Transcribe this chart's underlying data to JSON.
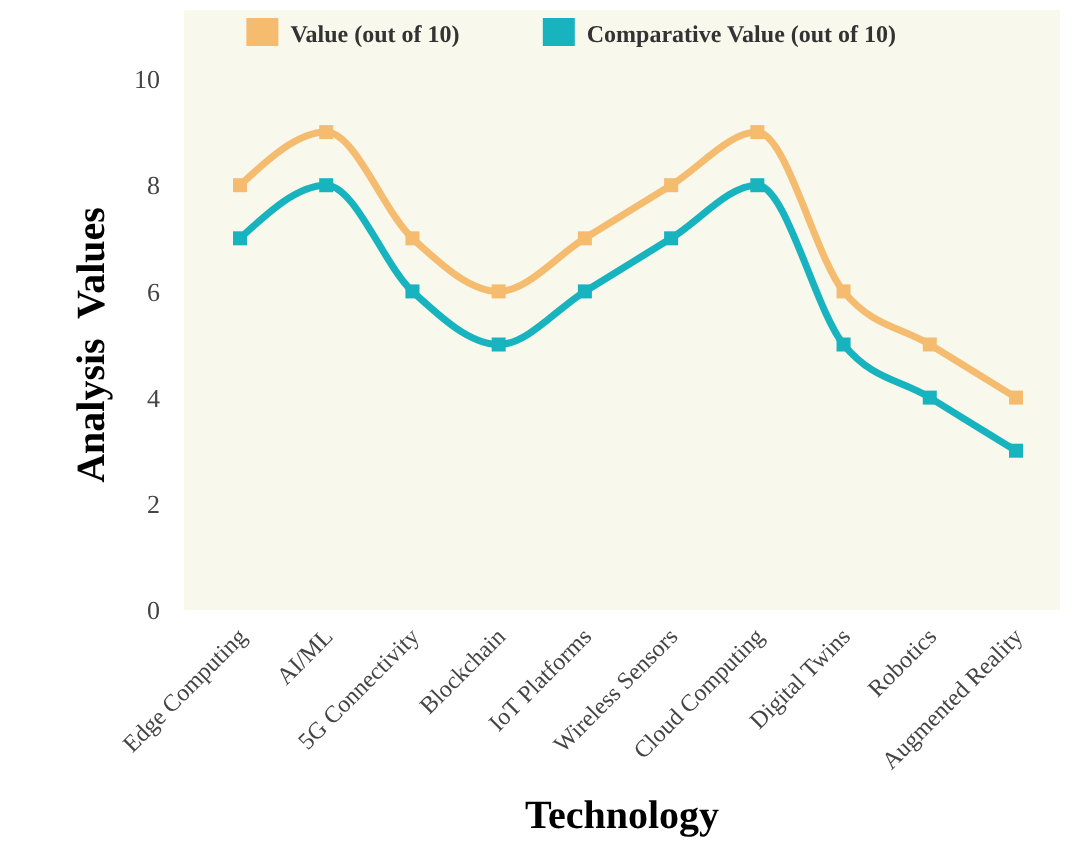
{
  "chart_data": {
    "type": "line",
    "xlabel": "Technology",
    "ylabel": "Analysis  Values",
    "categories": [
      "Edge Computing",
      "AI/ML",
      "5G Connectivity",
      "Blockchain",
      "IoT Platforms",
      "Wireless Sensors",
      "Cloud Computing",
      "Digital Twins",
      "Robotics",
      "Augmented Reality"
    ],
    "series": [
      {
        "name": "Value (out of 10)",
        "color": "#f5bb6e",
        "values": [
          8,
          9,
          7,
          6,
          7,
          8,
          9,
          6,
          5,
          4
        ]
      },
      {
        "name": "Comparative Value (out of 10)",
        "color": "#17b3bf",
        "values": [
          7,
          8,
          6,
          5,
          6,
          7,
          8,
          5,
          4,
          3
        ]
      }
    ],
    "ylim": [
      0,
      11.3
    ],
    "yticks": [
      0,
      2,
      4,
      6,
      8,
      10
    ],
    "grid": false,
    "legend": "top",
    "marker": "square",
    "line_style": "solid"
  }
}
